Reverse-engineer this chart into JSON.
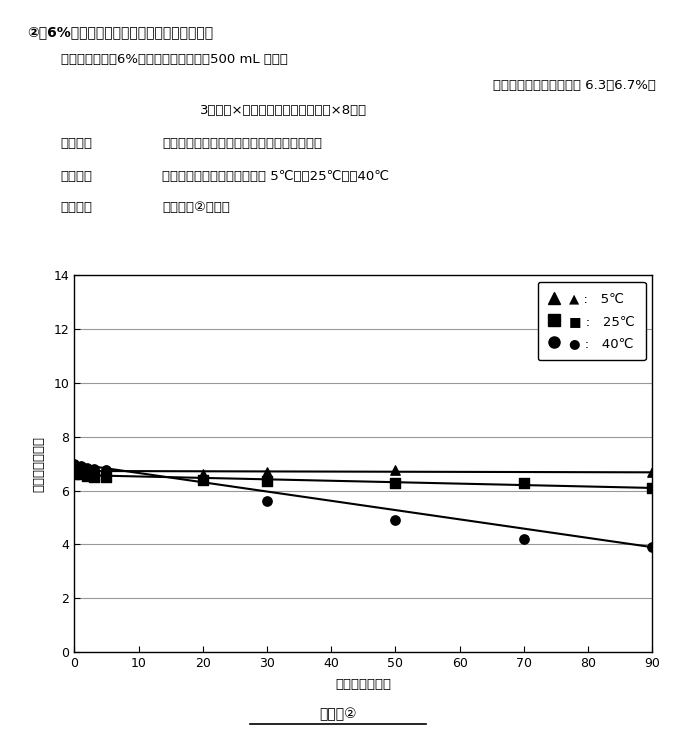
{
  "title_num": "②",
  "title_main": "6%次亜塩素酸ソーダの有効塩素経時変化",
  "sample_label": "測定サンプル：6%次亜塩素酸ソーダ　500 mL ボトル",
  "note_text": "（充填時有効塩素濃度　 6.3～6.7%）",
  "lot_text": "3ロット×各８本（各温度１ロット×8本）",
  "method_label": "測定方法",
  "method_text": "：所定日数経過後、１本ずつ有効塩素を測定",
  "env_label": "保管環境",
  "env_text": "：恒温恒湿器および冷蔵庫　 5℃，〠25℃，〠40℃",
  "result_label": "測定結果",
  "result_text": "：グラフ②　参照",
  "xlabel": "経過日数［日］",
  "ylabel": "有効塩素［％］",
  "caption": "グラフ②",
  "xlim": [
    0,
    90
  ],
  "ylim": [
    0,
    14
  ],
  "xticks": [
    0,
    10,
    20,
    30,
    40,
    50,
    60,
    70,
    80,
    90
  ],
  "yticks": [
    0,
    2,
    4,
    6,
    8,
    10,
    12,
    14
  ],
  "series": [
    {
      "marker": "^",
      "x_data": [
        0,
        1,
        2,
        3,
        5,
        20,
        30,
        50,
        90
      ],
      "y_data": [
        6.8,
        6.75,
        6.7,
        6.7,
        6.75,
        6.6,
        6.7,
        6.75,
        6.7
      ],
      "trend_x": [
        0,
        90
      ],
      "trend_y": [
        6.73,
        6.68
      ],
      "legend_marker": "^",
      "legend_label_jp": "5℃"
    },
    {
      "marker": "s",
      "x_data": [
        0,
        1,
        2,
        3,
        5,
        20,
        30,
        50,
        70,
        90
      ],
      "y_data": [
        6.6,
        6.6,
        6.55,
        6.5,
        6.5,
        6.4,
        6.35,
        6.3,
        6.3,
        6.1
      ],
      "trend_x": [
        0,
        90
      ],
      "trend_y": [
        6.58,
        6.1
      ],
      "legend_marker": "s",
      "legend_label_jp": "25℃"
    },
    {
      "marker": "o",
      "x_data": [
        0,
        1,
        2,
        3,
        5,
        30,
        50,
        70,
        90
      ],
      "y_data": [
        7.0,
        6.9,
        6.85,
        6.8,
        6.75,
        5.6,
        4.9,
        4.2,
        3.9
      ],
      "trend_x": [
        0,
        90
      ],
      "trend_y": [
        7.0,
        3.9
      ],
      "legend_marker": "o",
      "legend_label_jp": "40℃"
    }
  ],
  "background_color": "#ffffff",
  "grid_color": "#999999",
  "text_color": "#000000"
}
